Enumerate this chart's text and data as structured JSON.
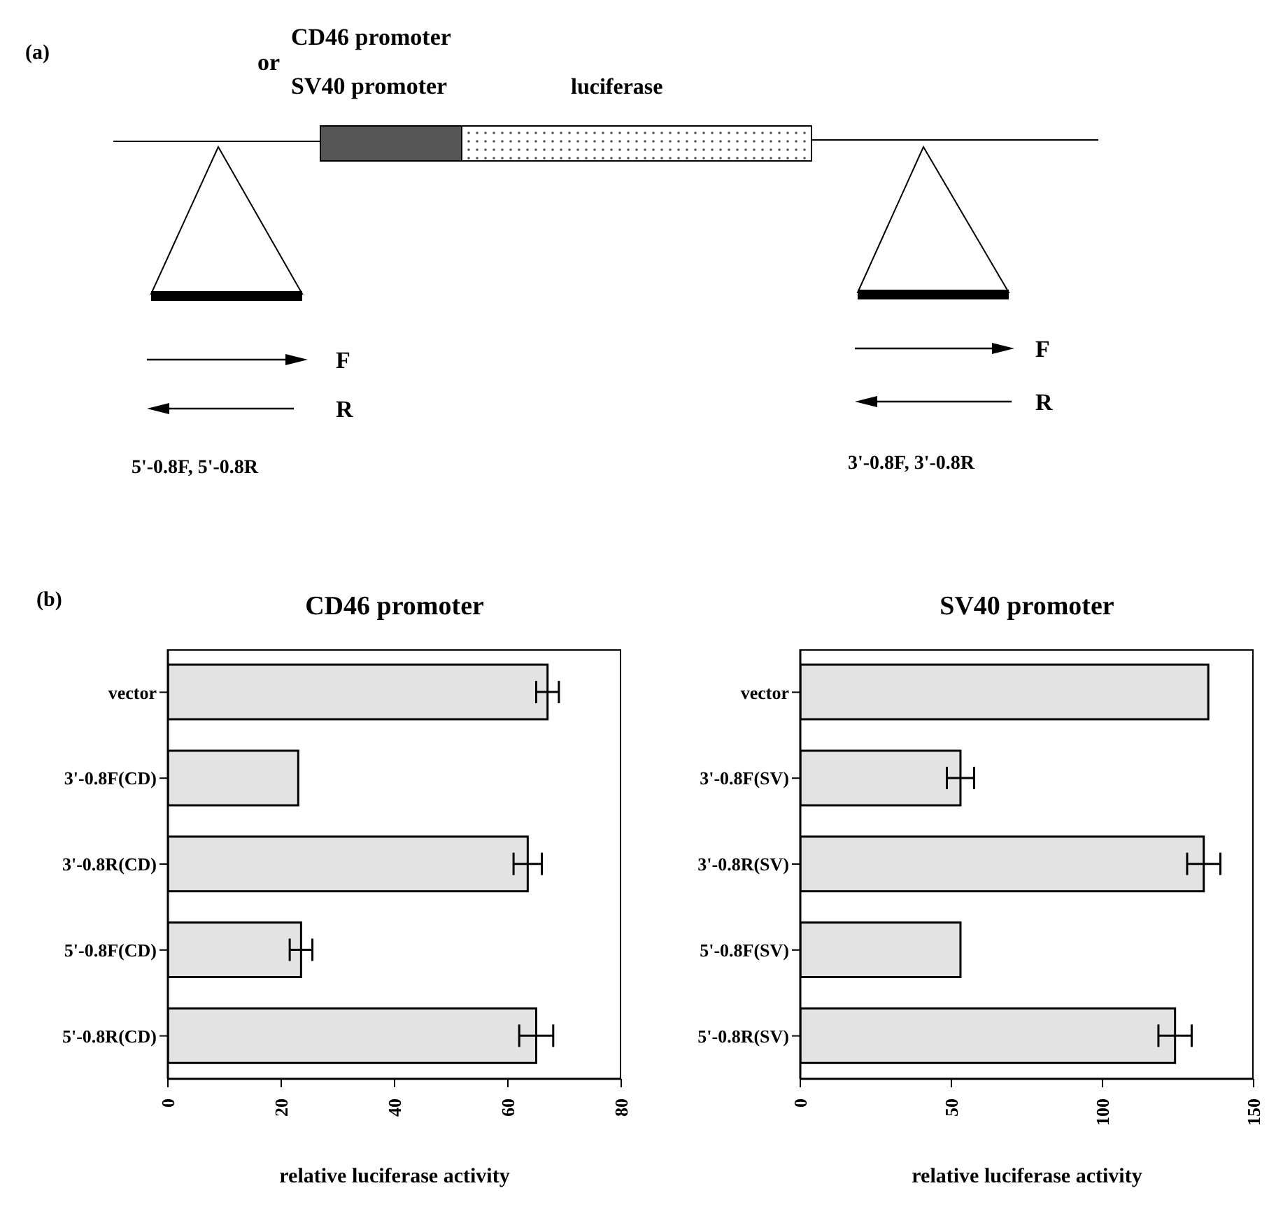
{
  "chart_data": [
    {
      "type": "other",
      "title": "(a)",
      "annotations": [
        "CD46 promoter",
        "or",
        "SV40 promoter",
        "luciferase",
        "F",
        "R",
        "F",
        "R",
        "5'-0.8F,  5'-0.8R",
        "3'-0.8F,  3'-0.8R"
      ]
    },
    {
      "type": "bar",
      "orientation": "horizontal",
      "title": "CD46 promoter",
      "annotations": [
        "(b)"
      ],
      "xlabel": "relative luciferase activity",
      "categories": [
        "vector",
        "3'-0.8F(CD)",
        "3'-0.8R(CD)",
        "5'-0.8F(CD)",
        "5'-0.8R(CD)"
      ],
      "values": [
        67,
        23,
        63.5,
        23.5,
        65
      ],
      "errors": [
        2,
        null,
        2.5,
        2,
        3
      ],
      "color": "#e3e3e3",
      "xlim": [
        0,
        80
      ],
      "xticks": [
        0,
        20,
        40,
        60,
        80
      ],
      "grid": false,
      "legend": false
    },
    {
      "type": "bar",
      "orientation": "horizontal",
      "title": "SV40 promoter",
      "xlabel": "relative luciferase activity",
      "categories": [
        "vector",
        "3'-0.8F(SV)",
        "3'-0.8R(SV)",
        "5'-0.8F(SV)",
        "5'-0.8R(SV)"
      ],
      "values": [
        135,
        53,
        133.5,
        53,
        124
      ],
      "errors": [
        null,
        4.5,
        5.5,
        null,
        5.5
      ],
      "color": "#e3e3e3",
      "xlim": [
        0,
        150
      ],
      "xticks": [
        0,
        50,
        100,
        150
      ],
      "grid": false,
      "legend": false
    }
  ]
}
